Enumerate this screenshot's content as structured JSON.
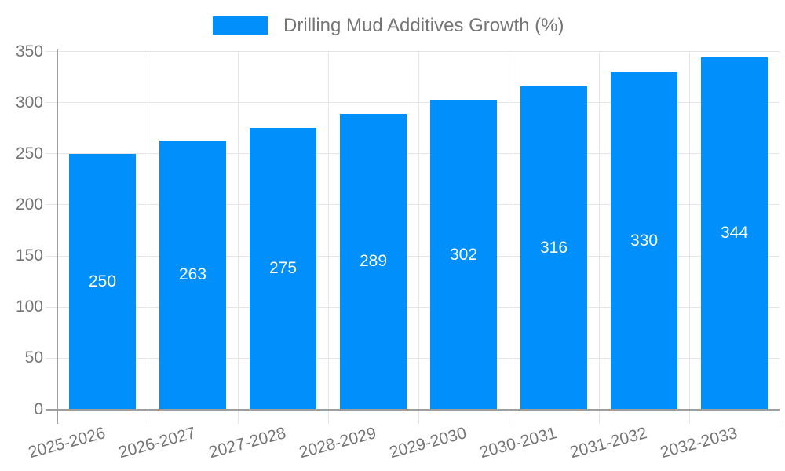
{
  "legend": {
    "label": "Drilling Mud Additives Growth (%)"
  },
  "chart_data": {
    "type": "bar",
    "title": "Drilling Mud Additives Growth (%)",
    "categories": [
      "2025-2026",
      "2026-2027",
      "2027-2028",
      "2028-2029",
      "2029-2030",
      "2030-2031",
      "2031-2032",
      "2032-2033"
    ],
    "values": [
      250,
      263,
      275,
      289,
      302,
      316,
      330,
      344
    ],
    "xlabel": "",
    "ylabel": "",
    "ylim": [
      0,
      350
    ],
    "yticks": [
      0,
      50,
      100,
      150,
      200,
      250,
      300,
      350
    ],
    "grid": true,
    "legend_position": "top",
    "bar_labels_shown": true,
    "colors": {
      "bar": "#008FFB",
      "bar_label": "#ffffff",
      "axis_text": "#757575",
      "gridline": "#e6e6e6",
      "axis_line": "#9e9e9e",
      "background": "#ffffff"
    }
  }
}
